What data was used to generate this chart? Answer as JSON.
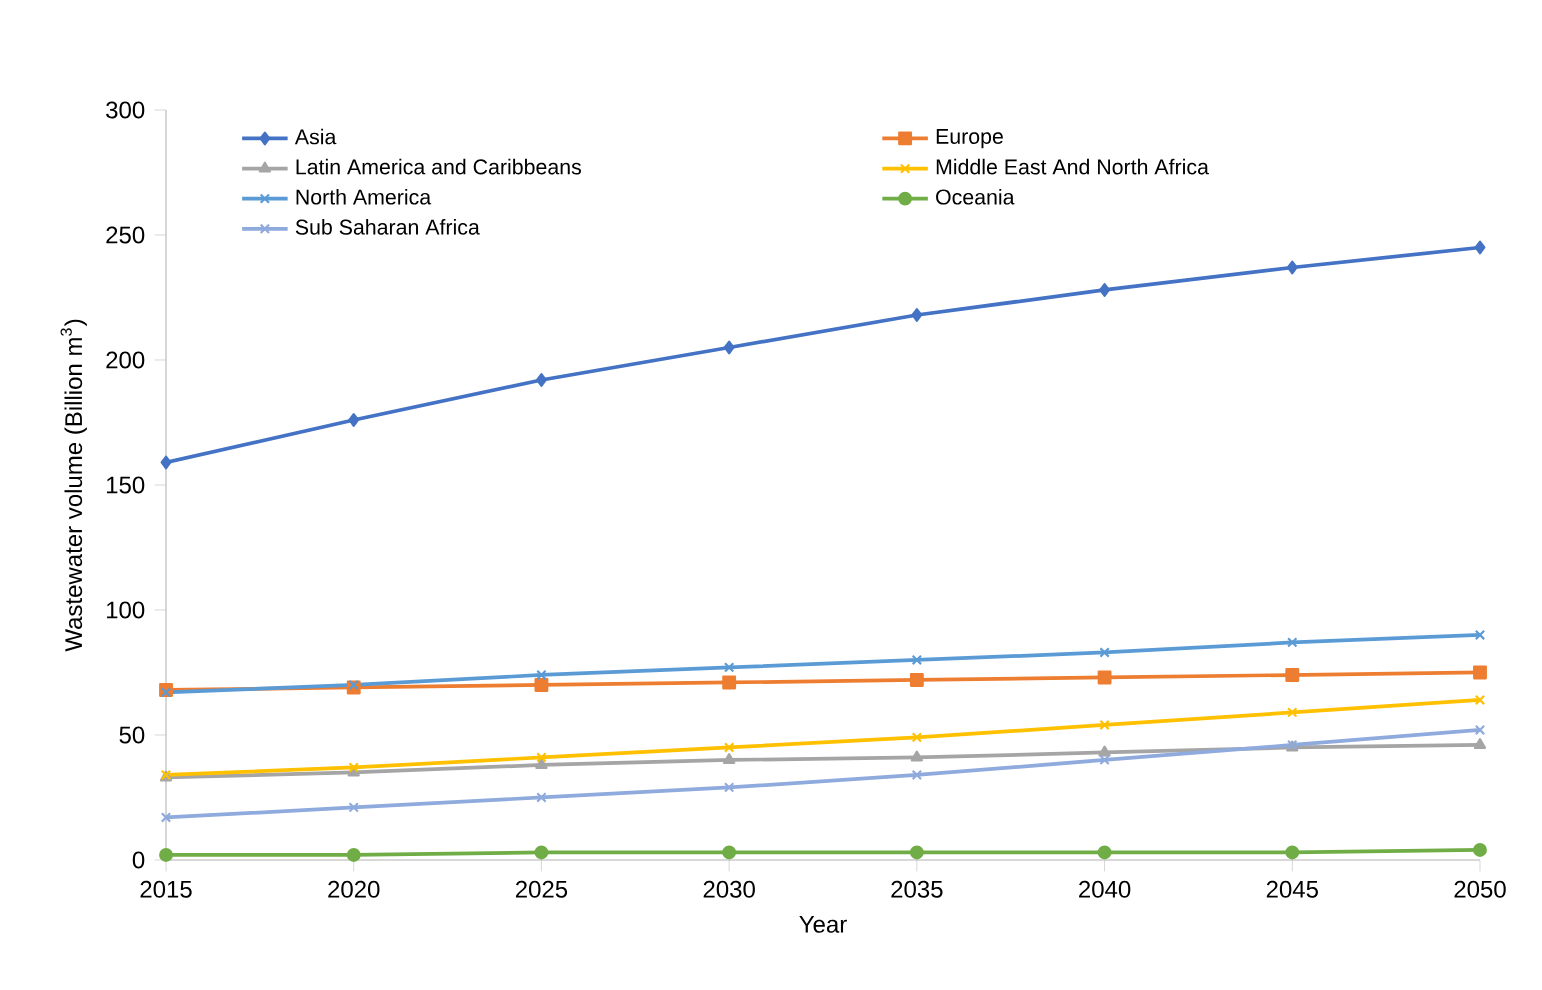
{
  "chart_data": {
    "type": "line",
    "xlabel": "Year",
    "ylabel": "Wastewater volume (Billion m$^{3}$)",
    "x": [
      2015,
      2020,
      2025,
      2030,
      2035,
      2040,
      2045,
      2050
    ],
    "xlim": [
      2015,
      2050
    ],
    "xticks": [
      2015,
      2020,
      2025,
      2030,
      2035,
      2040,
      2045,
      2050
    ],
    "ylim": [
      0,
      300
    ],
    "yticks": [
      0,
      50,
      100,
      150,
      200,
      250,
      300
    ],
    "grid": false,
    "legend": "top",
    "series": [
      {
        "name": "Asia",
        "color": "#4472c4",
        "marker": "diamond",
        "values": [
          159,
          176,
          192,
          205,
          218,
          228,
          237,
          245
        ]
      },
      {
        "name": "Europe",
        "color": "#ed7d31",
        "marker": "square",
        "values": [
          68,
          69,
          70,
          71,
          72,
          73,
          74,
          75
        ]
      },
      {
        "name": "Latin America and Caribbeans",
        "color": "#a5a5a5",
        "marker": "triangle",
        "values": [
          33,
          35,
          38,
          40,
          41,
          43,
          45,
          46
        ]
      },
      {
        "name": "Middle East And North Africa",
        "color": "#ffc000",
        "marker": "cross",
        "values": [
          34,
          37,
          41,
          45,
          49,
          54,
          59,
          64
        ]
      },
      {
        "name": "North America",
        "color": "#5b9bd5",
        "marker": "cross",
        "values": [
          67,
          70,
          74,
          77,
          80,
          83,
          87,
          90
        ]
      },
      {
        "name": "Oceania",
        "color": "#70ad47",
        "marker": "circle",
        "values": [
          2,
          2,
          3,
          3,
          3,
          3,
          3,
          4
        ]
      },
      {
        "name": "Sub Saharan Africa",
        "color": "#8faadc",
        "marker": "cross",
        "values": [
          17,
          21,
          25,
          29,
          34,
          40,
          46,
          52
        ]
      }
    ]
  }
}
